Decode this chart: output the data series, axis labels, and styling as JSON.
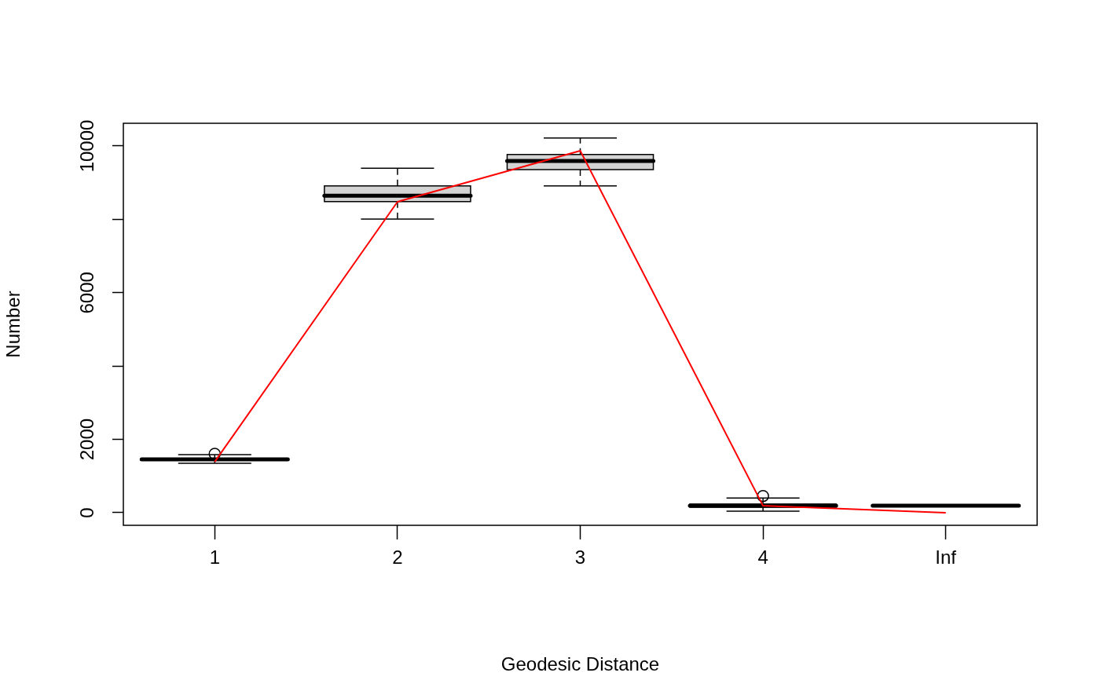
{
  "chart_data": {
    "type": "box",
    "xlabel": "Geodesic Distance",
    "ylabel": "Number",
    "categories": [
      "1",
      "2",
      "3",
      "4",
      "Inf"
    ],
    "color": "#d3d3d3",
    "boxes": [
      {
        "low": 1349,
        "q1": 1440,
        "median": 1456,
        "q3": 1470,
        "high": 1585,
        "outliers": [
          1606
        ]
      },
      {
        "low": 8009,
        "q1": 8486,
        "median": 8645,
        "q3": 8914,
        "high": 9393
      },
      {
        "low": 8914,
        "q1": 9358,
        "median": 9593,
        "q3": 9771,
        "high": 10221
      },
      {
        "low": 43,
        "q1": 150,
        "median": 193,
        "q3": 235,
        "high": 400,
        "outliers": [
          456
        ]
      },
      {
        "low": 180,
        "q1": 185,
        "median": 193,
        "q3": 200,
        "high": 205
      }
    ],
    "series": [
      {
        "type": "line",
        "color": "#ff0000",
        "values": [
          1390,
          8480,
          9870,
          190,
          0
        ]
      }
    ],
    "ylim": [
      -343,
      10621
    ],
    "yticks": [
      0,
      2000,
      {
        "value": 4000,
        "label": null
      },
      6000,
      {
        "value": 8000,
        "label": null
      },
      10000
    ],
    "grid": false,
    "legend": false,
    "marker": "none"
  }
}
